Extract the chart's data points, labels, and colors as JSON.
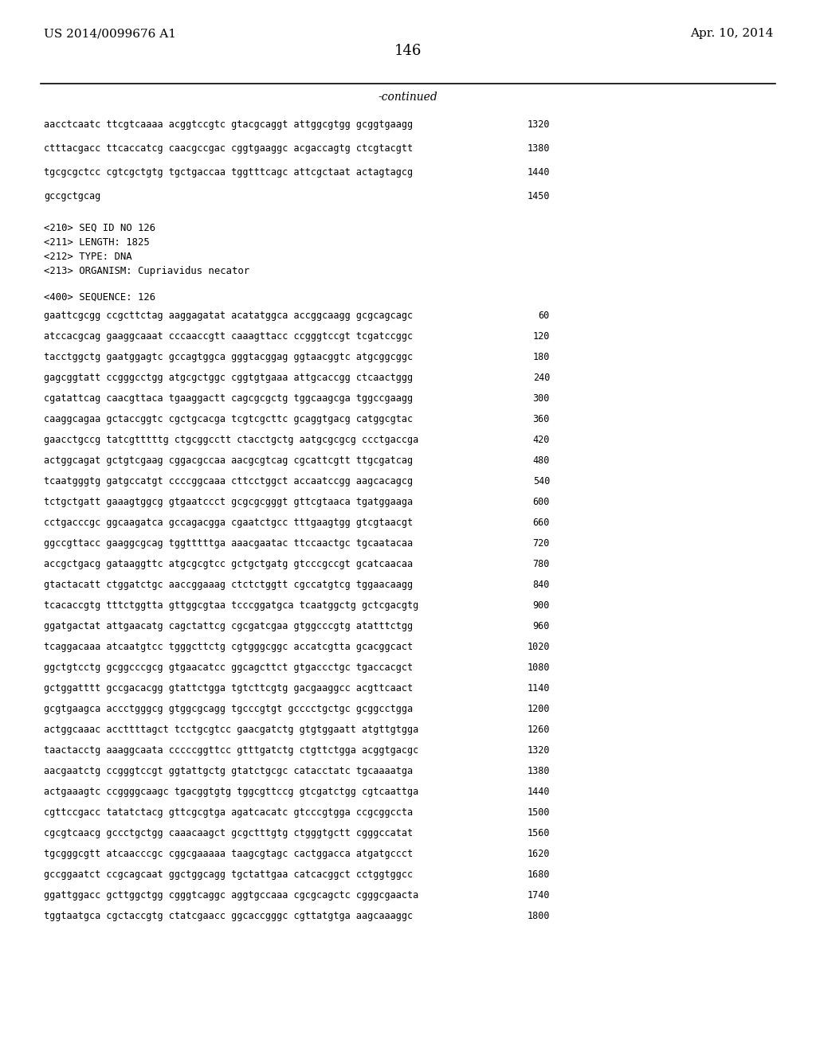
{
  "page_left": "US 2014/0099676 A1",
  "page_right": "Apr. 10, 2014",
  "page_number": "146",
  "continued_label": "-continued",
  "background_color": "#ffffff",
  "text_color": "#000000",
  "header_lines": [
    {
      "text": "aacctcaatc ttcgtcaaaa acggtccgtc gtacgcaggt attggcgtgg gcggtgaagg",
      "num": "1320"
    },
    {
      "text": "ctttacgacc ttcaccatcg caacgccgac cggtgaaggc acgaccagtg ctcgtacgtt",
      "num": "1380"
    },
    {
      "text": "tgcgcgctcc cgtcgctgtg tgctgaccaa tggtttcagc attcgctaat actagtagcg",
      "num": "1440"
    },
    {
      "text": "gccgctgcag",
      "num": "1450"
    }
  ],
  "meta_lines": [
    "<210> SEQ ID NO 126",
    "<211> LENGTH: 1825",
    "<212> TYPE: DNA",
    "<213> ORGANISM: Cupriavidus necator",
    "",
    "<400> SEQUENCE: 126"
  ],
  "sequence_lines": [
    {
      "text": "gaattcgcgg ccgcttctag aaggagatat acatatggca accggcaagg gcgcagcagc",
      "num": "60"
    },
    {
      "text": "atccacgcag gaaggcaaat cccaaccgtt caaagttacc ccgggtccgt tcgatccggc",
      "num": "120"
    },
    {
      "text": "tacctggctg gaatggagtc gccagtggca gggtacggag ggtaacggtc atgcggcggc",
      "num": "180"
    },
    {
      "text": "gagcggtatt ccgggcctgg atgcgctggc cggtgtgaaa attgcaccgg ctcaactggg",
      "num": "240"
    },
    {
      "text": "cgatattcag caacgttaca tgaaggactt cagcgcgctg tggcaagcga tggccgaagg",
      "num": "300"
    },
    {
      "text": "caaggcagaa gctaccggtc cgctgcacga tcgtcgcttc gcaggtgacg catggcgtac",
      "num": "360"
    },
    {
      "text": "gaacctgccg tatcgtttttg ctgcggcctt ctacctgctg aatgcgcgcg ccctgaccga",
      "num": "420"
    },
    {
      "text": "actggcagat gctgtcgaag cggacgccaa aacgcgtcag cgcattcgtt ttgcgatcag",
      "num": "480"
    },
    {
      "text": "tcaatgggtg gatgccatgt ccccggcaaa cttcctggct accaatccgg aagcacagcg",
      "num": "540"
    },
    {
      "text": "tctgctgatt gaaagtggcg gtgaatccct gcgcgcgggt gttcgtaaca tgatggaaga",
      "num": "600"
    },
    {
      "text": "cctgacccgc ggcaagatca gccagacgga cgaatctgcc tttgaagtgg gtcgtaacgt",
      "num": "660"
    },
    {
      "text": "ggccgttacc gaaggcgcag tggtttttga aaacgaatac ttccaactgc tgcaatacaa",
      "num": "720"
    },
    {
      "text": "accgctgacg gataaggttc atgcgcgtcc gctgctgatg gtcccgccgt gcatcaacaa",
      "num": "780"
    },
    {
      "text": "gtactacatt ctggatctgc aaccggaaag ctctctggtt cgccatgtcg tggaacaagg",
      "num": "840"
    },
    {
      "text": "tcacaccgtg tttctggtta gttggcgtaa tcccggatgca tcaatggctg gctcgacgtg",
      "num": "900"
    },
    {
      "text": "ggatgactat attgaacatg cagctattcg cgcgatcgaa gtggcccgtg atatttctgg",
      "num": "960"
    },
    {
      "text": "tcaggacaaa atcaatgtcc tgggcttctg cgtgggcggc accatcgtta gcacggcact",
      "num": "1020"
    },
    {
      "text": "ggctgtcctg gcggcccgcg gtgaacatcc ggcagcttct gtgaccctgc tgaccacgct",
      "num": "1080"
    },
    {
      "text": "gctggatttt gccgacacgg gtattctgga tgtcttcgtg gacgaaggcc acgttcaact",
      "num": "1140"
    },
    {
      "text": "gcgtgaagca accctgggcg gtggcgcagg tgcccgtgt gcccctgctgc gcggcctgga",
      "num": "1200"
    },
    {
      "text": "actggcaaac accttttagct tcctgcgtcc gaacgatctg gtgtggaatt atgttgtgga",
      "num": "1260"
    },
    {
      "text": "taactacctg aaaggcaata cccccggttcc gtttgatctg ctgttctgga acggtgacgc",
      "num": "1320"
    },
    {
      "text": "aacgaatctg ccgggtccgt ggtattgctg gtatctgcgc catacctatc tgcaaaatga",
      "num": "1380"
    },
    {
      "text": "actgaaagtc ccggggcaagc tgacggtgtg tggcgttccg gtcgatctgg cgtcaattga",
      "num": "1440"
    },
    {
      "text": "cgttccgacc tatatctacg gttcgcgtga agatcacatc gtcccgtgga ccgcggccta",
      "num": "1500"
    },
    {
      "text": "cgcgtcaacg gccctgctgg caaacaagct gcgctttgtg ctgggtgctt cgggccatat",
      "num": "1560"
    },
    {
      "text": "tgcgggcgtt atcaacccgc cggcgaaaaa taagcgtagc cactggacca atgatgccct",
      "num": "1620"
    },
    {
      "text": "gccggaatct ccgcagcaat ggctggcagg tgctattgaa catcacggct cctggtggcc",
      "num": "1680"
    },
    {
      "text": "ggattggacc gcttggctgg cgggtcaggc aggtgccaaa cgcgcagctc cgggcgaacta",
      "num": "1740"
    },
    {
      "text": "tggtaatgca cgctaccgtg ctatcgaacc ggcaccgggc cgttatgtga aagcaaaggc",
      "num": "1800"
    }
  ]
}
